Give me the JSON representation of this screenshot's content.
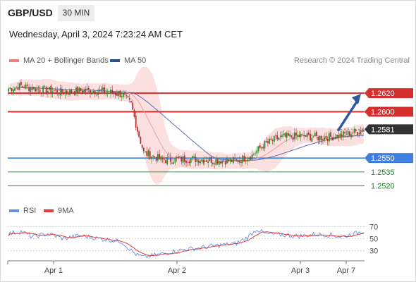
{
  "header": {
    "pair": "GBP/USD",
    "timeframe": "30 MIN",
    "datetime": "Wednesday, April 3, 2024 7:23:24 AM CET"
  },
  "legend": {
    "ma20_label": "MA 20 + Bollinger Bands",
    "ma50_label": "MA 50",
    "copyright": "Research © 2024 Trading Central",
    "rsi_label": "RSI",
    "ma9_label": "9MA"
  },
  "colors": {
    "resistance": "#d32f2f",
    "support": "#3f7fe0",
    "target_support": "#3a9a3a",
    "current_price_box": "#333333",
    "arrow": "#2a5aa0",
    "bollinger_fill": "#fbdada",
    "ma20": "#e6a0a0",
    "ma50": "#5a6fb0",
    "rsi": "#6a8ee0",
    "rsi_ma9": "#e53935",
    "bull_candle": "#2e8b2e",
    "bear_candle": "#b03030"
  },
  "chart_data": [
    {
      "type": "candlestick",
      "title": "GBP/USD",
      "timeframe": "30 MIN",
      "x_tick_labels": [
        "Apr 1",
        "Apr 2",
        "Apr 3",
        "Apr 7"
      ],
      "ylim": [
        1.2506,
        1.2646
      ],
      "levels": [
        {
          "value": 1.262,
          "label": "1.2620",
          "kind": "resistance"
        },
        {
          "value": 1.26,
          "label": "1.2600",
          "kind": "resistance"
        },
        {
          "value": 1.2581,
          "label": "1.2581",
          "kind": "current"
        },
        {
          "value": 1.255,
          "label": "1.2550",
          "kind": "pivot"
        },
        {
          "value": 1.2535,
          "label": "1.2535",
          "kind": "support"
        },
        {
          "value": 1.252,
          "label": "1.2520",
          "kind": "support"
        }
      ],
      "close_path": [
        [
          0,
          1.2625
        ],
        [
          8,
          1.2628
        ],
        [
          20,
          1.2624
        ],
        [
          34,
          1.2621
        ],
        [
          48,
          1.2623
        ],
        [
          60,
          1.2622
        ],
        [
          72,
          1.2619
        ],
        [
          78,
          1.2608
        ],
        [
          82,
          1.258
        ],
        [
          86,
          1.2556
        ],
        [
          98,
          1.2548
        ],
        [
          115,
          1.2549
        ],
        [
          130,
          1.2548
        ],
        [
          145,
          1.2547
        ],
        [
          155,
          1.2553
        ],
        [
          162,
          1.2564
        ],
        [
          172,
          1.2572
        ],
        [
          185,
          1.2574
        ],
        [
          200,
          1.2572
        ],
        [
          210,
          1.2574
        ],
        [
          220,
          1.2578
        ],
        [
          226,
          1.2581
        ]
      ],
      "candle_count": 227,
      "projection": {
        "from": 1.2581,
        "to": 1.262,
        "direction": "up"
      },
      "series": [
        {
          "name": "MA 20 + Bollinger Bands"
        },
        {
          "name": "MA 50"
        }
      ]
    },
    {
      "type": "line",
      "x_tick_labels": [
        "Apr 1",
        "Apr 2",
        "Apr 3",
        "Apr 7"
      ],
      "ylim": [
        15,
        80
      ],
      "y_ticks": [
        70,
        50,
        30
      ],
      "rsi_path": [
        [
          0,
          58
        ],
        [
          8,
          62
        ],
        [
          15,
          53
        ],
        [
          25,
          58
        ],
        [
          35,
          50
        ],
        [
          45,
          55
        ],
        [
          60,
          49
        ],
        [
          72,
          45
        ],
        [
          78,
          30
        ],
        [
          82,
          22
        ],
        [
          86,
          19
        ],
        [
          95,
          23
        ],
        [
          110,
          31
        ],
        [
          120,
          34
        ],
        [
          135,
          39
        ],
        [
          145,
          42
        ],
        [
          152,
          52
        ],
        [
          158,
          66
        ],
        [
          163,
          58
        ],
        [
          175,
          56
        ],
        [
          185,
          54
        ],
        [
          195,
          57
        ],
        [
          205,
          56
        ],
        [
          212,
          53
        ],
        [
          220,
          58
        ],
        [
          226,
          63
        ]
      ],
      "series": [
        {
          "name": "RSI"
        },
        {
          "name": "9MA"
        }
      ]
    }
  ]
}
